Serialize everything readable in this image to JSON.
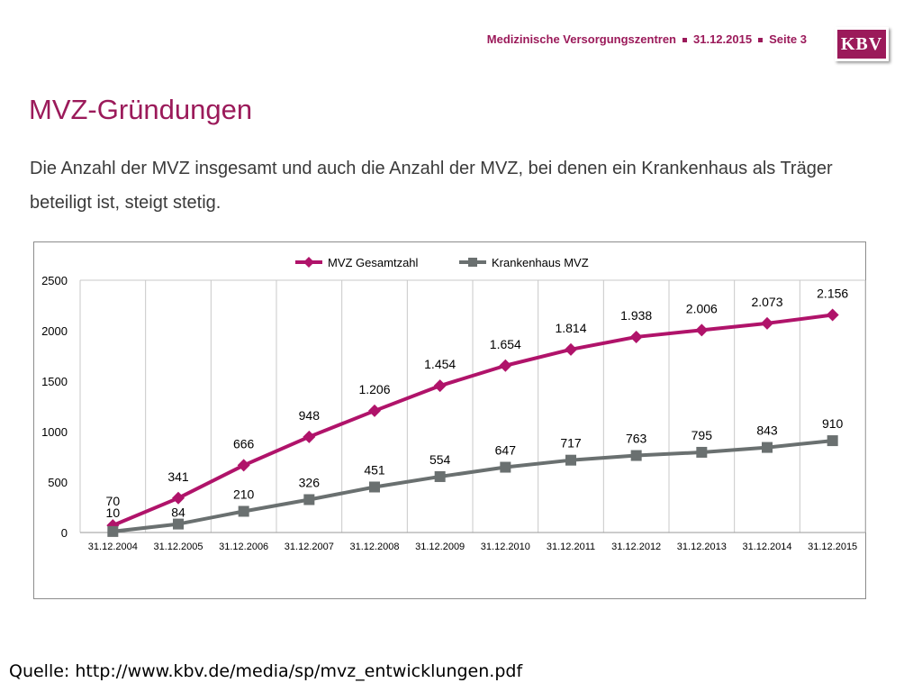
{
  "header": {
    "section": "Medizinische Versorgungszentren",
    "date": "31.12.2015",
    "page": "Seite 3"
  },
  "logo": {
    "text": "KBV"
  },
  "title": "MVZ-Gründungen",
  "intro": "Die Anzahl der MVZ insgesamt und auch die Anzahl der MVZ, bei denen ein Krankenhaus als Träger beteiligt ist, steigt stetig.",
  "source": "Quelle: http://www.kbv.de/media/sp/mvz_entwicklungen.pdf",
  "chart_data": {
    "type": "line",
    "title": "",
    "xlabel": "",
    "ylabel": "",
    "x": [
      "31.12.2004",
      "31.12.2005",
      "31.12.2006",
      "31.12.2007",
      "31.12.2008",
      "31.12.2009",
      "31.12.2010",
      "31.12.2011",
      "31.12.2012",
      "31.12.2013",
      "31.12.2014",
      "31.12.2015"
    ],
    "ylim": [
      0,
      2500
    ],
    "yticks": [
      0,
      500,
      1000,
      1500,
      2000,
      2500
    ],
    "grid": "vertical",
    "legend": "top",
    "series": [
      {
        "name": "MVZ Gesamtzahl",
        "color": "#b0136a",
        "marker": "diamond",
        "values": [
          70,
          341,
          666,
          948,
          1206,
          1454,
          1654,
          1814,
          1938,
          2006,
          2073,
          2156
        ],
        "labels": [
          "70",
          "341",
          "666",
          "948",
          "1.206",
          "1.454",
          "1.654",
          "1.814",
          "1.938",
          "2.006",
          "2.073",
          "2.156"
        ]
      },
      {
        "name": "Krankenhaus MVZ",
        "color": "#6a7070",
        "marker": "square",
        "values": [
          10,
          84,
          210,
          326,
          451,
          554,
          647,
          717,
          763,
          795,
          843,
          910
        ],
        "labels": [
          "10",
          "84",
          "210",
          "326",
          "451",
          "554",
          "647",
          "717",
          "763",
          "795",
          "843",
          "910"
        ]
      }
    ]
  }
}
